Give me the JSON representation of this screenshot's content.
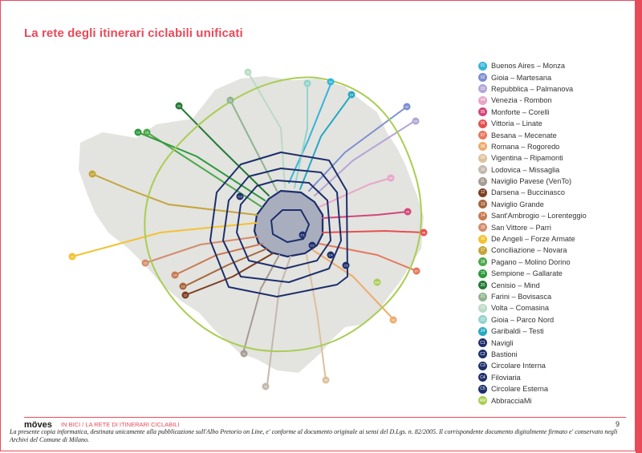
{
  "title": "La rete degli itinerari ciclabili unificati",
  "footer": {
    "brand": "möves",
    "section": "IN BICI / LA RETE DI ITINERARI CICLABILI",
    "page_number": "9",
    "disclaimer": "La presente copia informatica, destinata unicamente alla pubblicazione sull'Albo Pretorio on Line, e' conforme al documento originale ai sensi del D.Lgs. n. 82/2005. Il corrispondente documento digitalmente firmato e' conservato negli Archivi del Comune di Milano."
  },
  "colors": {
    "accent": "#e84a5a",
    "city_area": "#e3e3e0",
    "center_area": "#a9aebf"
  },
  "legend": [
    {
      "code": "01",
      "label": "Buenos Aires – Monza",
      "color": "#35b4d8"
    },
    {
      "code": "02",
      "label": "Gioia – Martesana",
      "color": "#7b8fd0"
    },
    {
      "code": "03",
      "label": "Repubblica – Palmanova",
      "color": "#b4a5d6"
    },
    {
      "code": "04",
      "label": "Venezia - Rombon",
      "color": "#e7a6c9"
    },
    {
      "code": "05",
      "label": "Monforte – Corelli",
      "color": "#d2467a"
    },
    {
      "code": "06",
      "label": "Vittoria – Linate",
      "color": "#e5504e"
    },
    {
      "code": "07",
      "label": "Besana – Mecenate",
      "color": "#e6785d"
    },
    {
      "code": "08",
      "label": "Romana – Rogoredo",
      "color": "#eeaa6a"
    },
    {
      "code": "09",
      "label": "Vigentina – Ripamonti",
      "color": "#dcc19c"
    },
    {
      "code": "10",
      "label": "Lodovica – Missaglia",
      "color": "#c4b8ac"
    },
    {
      "code": "11",
      "label": "Naviglio Pavese (VenTo)",
      "color": "#a89b93"
    },
    {
      "code": "12",
      "label": "Darsena – Buccinasco",
      "color": "#7e3e22"
    },
    {
      "code": "13",
      "label": "Naviglio Grande",
      "color": "#a8663c"
    },
    {
      "code": "14",
      "label": "Sant'Ambrogio – Lorenteggio",
      "color": "#c87a52"
    },
    {
      "code": "15",
      "label": "San Vittore – Parri",
      "color": "#d38c6d"
    },
    {
      "code": "16",
      "label": "De Angeli – Forze Armate",
      "color": "#f2c230"
    },
    {
      "code": "17",
      "label": "Conciliazione – Novara",
      "color": "#c3a53a"
    },
    {
      "code": "18",
      "label": "Pagano – Molino Dorino",
      "color": "#4ea84d"
    },
    {
      "code": "19",
      "label": "Sempione – Gallarate",
      "color": "#2c9a3a"
    },
    {
      "code": "20",
      "label": "Cenisio – Mind",
      "color": "#237a35"
    },
    {
      "code": "21",
      "label": "Farini – Bovisasca",
      "color": "#90b48f"
    },
    {
      "code": "22",
      "label": "Volta – Comasina",
      "color": "#b9dbc4"
    },
    {
      "code": "23",
      "label": "Gioia – Parco Nord",
      "color": "#92d3cb"
    },
    {
      "code": "24",
      "label": "Garibaldi – Testi",
      "color": "#26a9c2"
    },
    {
      "code": "C1",
      "label": "Navigli",
      "color": "#1d2f6b"
    },
    {
      "code": "C2",
      "label": "Bastioni",
      "color": "#1d2f6b"
    },
    {
      "code": "C3",
      "label": "Circolare Interna",
      "color": "#1d2f6b"
    },
    {
      "code": "C4",
      "label": "Filoviaria",
      "color": "#1d2f6b"
    },
    {
      "code": "C5",
      "label": "Circolare Esterna",
      "color": "#1d2f6b"
    },
    {
      "code": "AM",
      "label": "AbbracciaMi",
      "color": "#a9cd52"
    }
  ]
}
